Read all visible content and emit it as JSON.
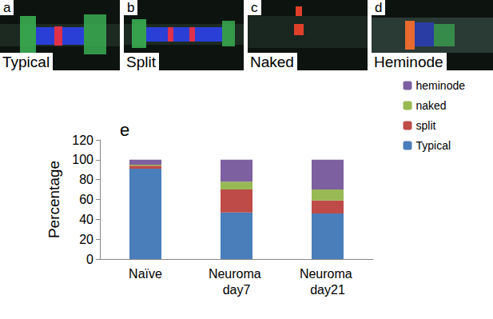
{
  "panels": [
    {
      "letter": "a",
      "label": "Typical"
    },
    {
      "letter": "b",
      "label": "Split"
    },
    {
      "letter": "c",
      "label": "Naked"
    },
    {
      "letter": "d",
      "label": "Heminode"
    }
  ],
  "chart_data": {
    "type": "bar",
    "panel_letter": "e",
    "y_label": "Percentage",
    "categories": [
      "Naïve",
      "Neuroma day7",
      "Neuroma day21"
    ],
    "series": [
      {
        "name": "Typical",
        "color": "#4a7ebb",
        "values": [
          91,
          47,
          46
        ]
      },
      {
        "name": "split",
        "color": "#be4b48",
        "values": [
          3,
          23,
          13
        ]
      },
      {
        "name": "naked",
        "color": "#98b954",
        "values": [
          1,
          8,
          11
        ]
      },
      {
        "name": "heminode",
        "color": "#7d60a0",
        "values": [
          5,
          22,
          30
        ]
      }
    ],
    "stacked": true,
    "ylim": [
      0,
      120
    ],
    "yticks": [
      0,
      20,
      40,
      60,
      80,
      100,
      120
    ],
    "grid": false,
    "legend": "right"
  }
}
